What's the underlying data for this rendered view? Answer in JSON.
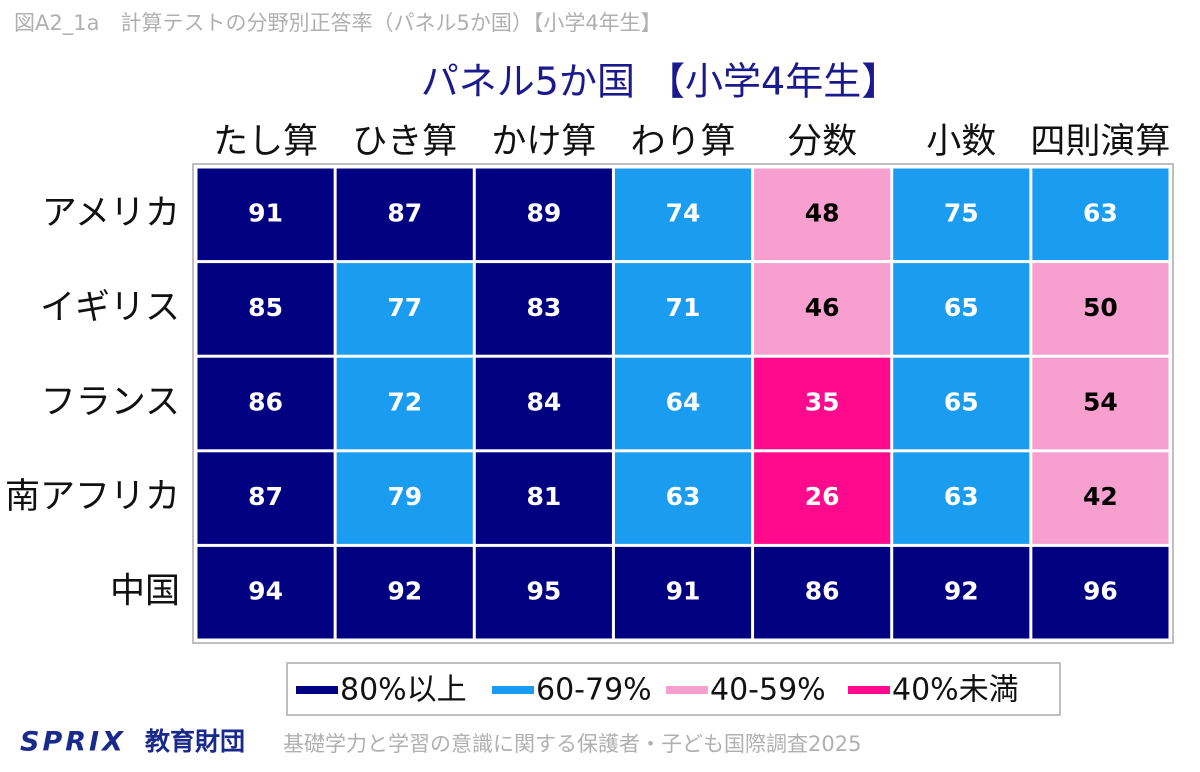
{
  "header": {
    "figure_label": "図A2_1a　計算テストの分野別正答率（パネル5か国）【小学4年生】"
  },
  "chart_data": {
    "type": "heatmap",
    "title": "パネル5か国 【小学4年生】",
    "columns": [
      "たし算",
      "ひき算",
      "かけ算",
      "わり算",
      "分数",
      "小数",
      "四則演算"
    ],
    "rows": [
      "アメリカ",
      "イギリス",
      "フランス",
      "南アフリカ",
      "中国"
    ],
    "values": [
      [
        91,
        87,
        89,
        74,
        48,
        75,
        63
      ],
      [
        85,
        77,
        83,
        71,
        46,
        65,
        50
      ],
      [
        86,
        72,
        84,
        64,
        35,
        65,
        54
      ],
      [
        87,
        79,
        81,
        63,
        26,
        63,
        42
      ],
      [
        94,
        92,
        95,
        91,
        86,
        92,
        96
      ]
    ],
    "legend": {
      "items": [
        {
          "label": "80%以上",
          "min": 80,
          "color": "#000080",
          "text_color": "#ffffff"
        },
        {
          "label": "60-79%",
          "min": 60,
          "color": "#1a9cf0",
          "text_color": "#ffffff"
        },
        {
          "label": "40-59%",
          "min": 40,
          "color": "#f79fcf",
          "text_color": "#000000"
        },
        {
          "label": "40%未満",
          "color": "#ff0a8c",
          "text_color": "#ffffff"
        }
      ]
    }
  },
  "footer": {
    "logo": "SPRIX",
    "org": "教育財団",
    "source": "基礎学力と学習の意識に関する保護者・子ども国際調査2025"
  }
}
